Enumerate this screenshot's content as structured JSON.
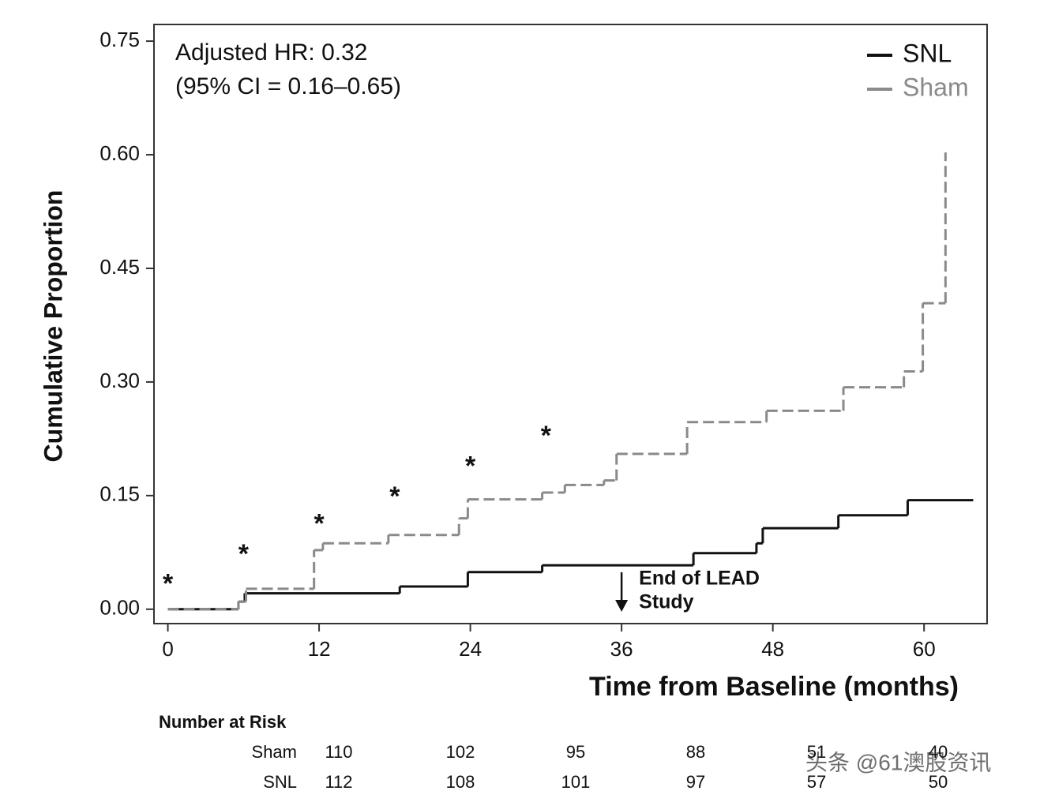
{
  "chart_data": {
    "type": "step",
    "xlabel": "Time from Baseline (months)",
    "ylabel": "Cumulative Proportion",
    "xlim": [
      -1.1,
      65
    ],
    "ylim": [
      -0.019,
      0.772
    ],
    "xticks": [
      0,
      12,
      24,
      36,
      48,
      60
    ],
    "yticks": [
      {
        "value": 0,
        "label": "0.00"
      },
      0.15,
      {
        "value": 0.3,
        "label": "0.30"
      },
      0.45,
      {
        "value": 0.6,
        "label": "0.60"
      },
      0.75
    ],
    "legend_position": "upper right",
    "series": [
      {
        "name": "SNL",
        "color": "#111111",
        "dashed": false,
        "x": [
          0,
          5.6,
          6.1,
          18.4,
          23.8,
          29.7,
          41.7,
          46.7,
          47.2,
          53.2,
          58.7,
          63.9
        ],
        "y": [
          0,
          0.01,
          0.021,
          0.03,
          0.049,
          0.058,
          0.074,
          0.087,
          0.107,
          0.124,
          0.144,
          0.144
        ]
      },
      {
        "name": "Sham",
        "color": "#8a8a8a",
        "dashed": true,
        "x": [
          0,
          5.6,
          6.2,
          11.6,
          12.3,
          17.5,
          23.1,
          23.8,
          29.7,
          31.5,
          34.6,
          35.6,
          41.2,
          47.5,
          53.6,
          58.4,
          59.9,
          61.7
        ],
        "y": [
          0,
          0.01,
          0.027,
          0.078,
          0.087,
          0.098,
          0.12,
          0.145,
          0.154,
          0.164,
          0.17,
          0.205,
          0.247,
          0.262,
          0.293,
          0.314,
          0.404,
          0.603
        ]
      }
    ],
    "significance_markers": {
      "label": "*",
      "x": [
        0,
        6,
        12,
        18,
        24,
        30
      ],
      "y": [
        0.038,
        0.077,
        0.117,
        0.153,
        0.193,
        0.233
      ]
    },
    "annotations": [
      {
        "lines": [
          "Adjusted HR: 0.32",
          "(95% CI = 0.16–0.65)"
        ]
      },
      {
        "lines": [
          "End of LEAD",
          "Study"
        ],
        "x": 36
      }
    ],
    "risk_table": {
      "title": "Number at Risk",
      "rows": [
        {
          "name": "Sham",
          "values": [
            110,
            102,
            95,
            88,
            51,
            40
          ]
        },
        {
          "name": "SNL",
          "values": [
            112,
            108,
            101,
            97,
            57,
            50
          ]
        }
      ]
    },
    "watermark": "头条 @61澳股资讯"
  }
}
